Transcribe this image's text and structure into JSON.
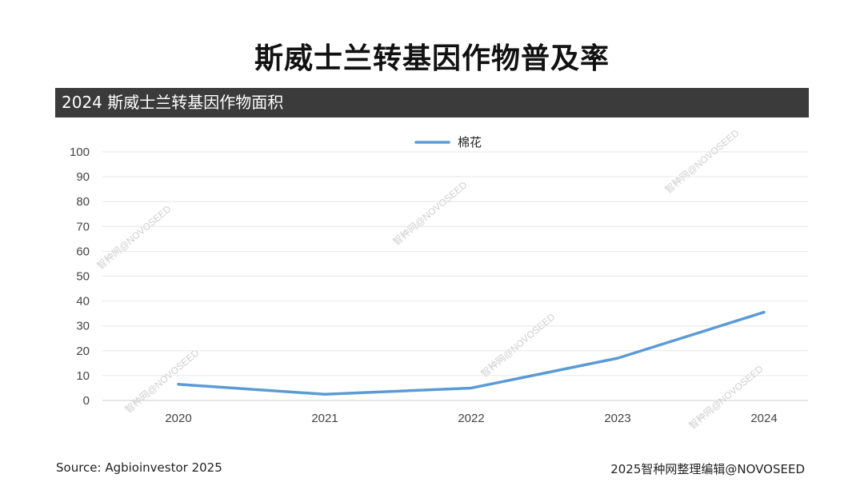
{
  "title": "斯威士兰转基因作物普及率",
  "banner_title": "2024 斯威士兰转基因作物面积",
  "source": "Source: Agbioinvestor 2025",
  "credit": "2025智种网整理编辑@NOVOSEED",
  "watermark": "智种网@NOVOSEED",
  "colors": {
    "line": "#5b9bd5",
    "banner": "#3b3b3b",
    "grid": "#e6e6e6"
  },
  "chart_data": {
    "type": "line",
    "x": [
      "2020",
      "2021",
      "2022",
      "2023",
      "2024"
    ],
    "series": [
      {
        "name": "棉花",
        "values": [
          6.5,
          2.5,
          5,
          17,
          35.5
        ]
      }
    ],
    "ylim": [
      0,
      100
    ],
    "yticks": [
      0,
      10,
      20,
      30,
      40,
      50,
      60,
      70,
      80,
      90,
      100
    ],
    "grid": true,
    "legend_position": "top-center"
  }
}
